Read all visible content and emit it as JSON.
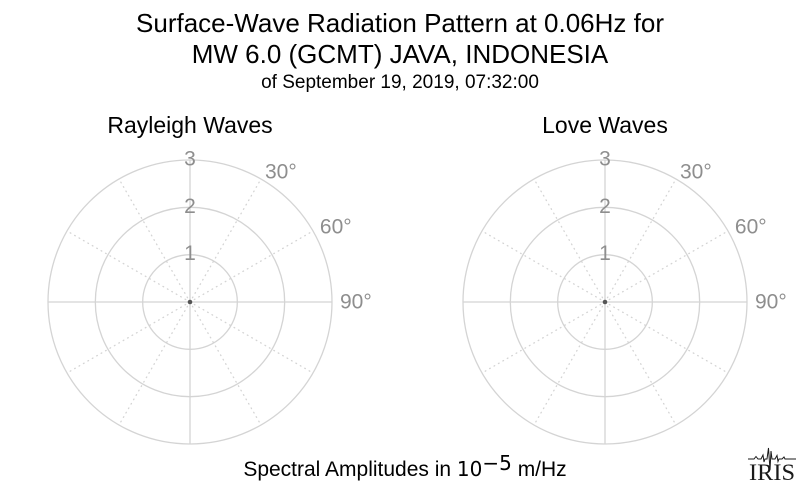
{
  "header": {
    "title_line1": "Surface-Wave Radiation Pattern at 0.06Hz for",
    "title_line2": "MW 6.0 (GCMT) JAVA, INDONESIA",
    "subtitle": "of September 19, 2019, 07:32:00"
  },
  "caption": {
    "prefix": "Spectral Amplitudes in ",
    "mantissa": "10",
    "exponent": "−5",
    "suffix": " m/Hz"
  },
  "logo": {
    "text": "IRIS"
  },
  "colors": {
    "grid": "#d4d4d4",
    "tick_label": "#8e8e8e",
    "pattern_dot": "#555555",
    "text": "#000000"
  },
  "chart_data": [
    {
      "type": "polar",
      "title": "Rayleigh Waves",
      "r_ticks": [
        1,
        2,
        3
      ],
      "r_tick_labels": [
        "1",
        "2",
        "3"
      ],
      "r_max": 3,
      "r_units": "10^-5 m/Hz (spectral amplitude)",
      "theta_tick_labels": [
        "30°",
        "60°",
        "90°"
      ],
      "theta_tick_angles_deg": [
        30,
        60,
        90
      ],
      "solid_spoke_angles_deg": [
        0,
        90,
        180,
        270
      ],
      "dotted_spoke_angles_deg": [
        30,
        60,
        120,
        150,
        210,
        240,
        300,
        330
      ],
      "grid": true,
      "pattern": {
        "description": "radiation amplitude approximately 0 at all azimuths at this scale; rendered as a single dot at the origin",
        "r_value": 0
      }
    },
    {
      "type": "polar",
      "title": "Love Waves",
      "r_ticks": [
        1,
        2,
        3
      ],
      "r_tick_labels": [
        "1",
        "2",
        "3"
      ],
      "r_max": 3,
      "r_units": "10^-5 m/Hz (spectral amplitude)",
      "theta_tick_labels": [
        "30°",
        "60°",
        "90°"
      ],
      "theta_tick_angles_deg": [
        30,
        60,
        90
      ],
      "solid_spoke_angles_deg": [
        0,
        90,
        180,
        270
      ],
      "dotted_spoke_angles_deg": [
        30,
        60,
        120,
        150,
        210,
        240,
        300,
        330
      ],
      "grid": true,
      "pattern": {
        "description": "radiation amplitude approximately 0 at all azimuths at this scale; rendered as a single dot at the origin",
        "r_value": 0
      }
    }
  ]
}
